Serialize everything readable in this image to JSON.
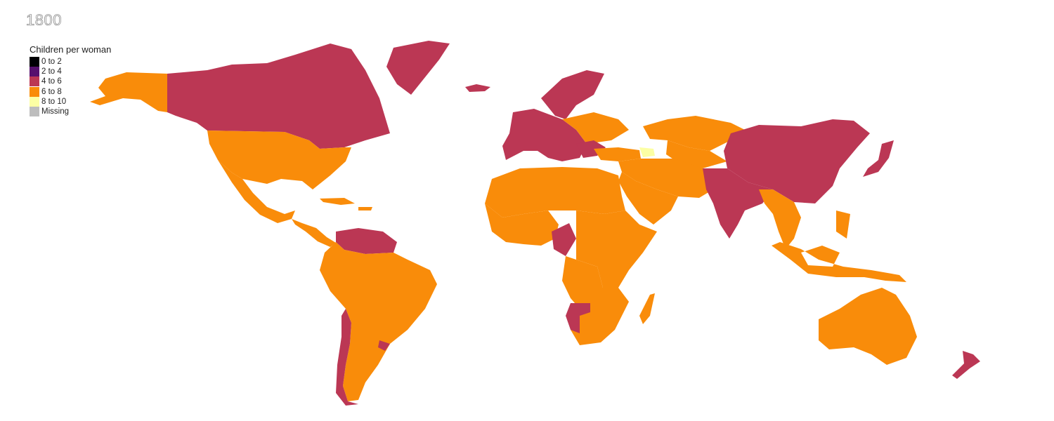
{
  "year": "1800",
  "legend": {
    "title": "Children per woman",
    "items": [
      {
        "label": "0 to 2",
        "color": "#000004"
      },
      {
        "label": "2 to 4",
        "color": "#56106e"
      },
      {
        "label": "4 to 6",
        "color": "#bb3754"
      },
      {
        "label": "6 to 8",
        "color": "#f98c0a"
      },
      {
        "label": "8 to 10",
        "color": "#fcffa4"
      },
      {
        "label": "Missing",
        "color": "#bdbdbd"
      }
    ]
  },
  "regions": [
    {
      "name": "Alaska",
      "category": "6 to 8"
    },
    {
      "name": "Canada",
      "category": "4 to 6"
    },
    {
      "name": "Greenland",
      "category": "4 to 6"
    },
    {
      "name": "Iceland",
      "category": "4 to 6"
    },
    {
      "name": "United States",
      "category": "6 to 8"
    },
    {
      "name": "Mexico",
      "category": "6 to 8"
    },
    {
      "name": "Central America",
      "category": "6 to 8"
    },
    {
      "name": "Caribbean",
      "category": "6 to 8"
    },
    {
      "name": "Venezuela and Guianas",
      "category": "4 to 6"
    },
    {
      "name": "South America",
      "category": "6 to 8"
    },
    {
      "name": "Chile",
      "category": "4 to 6"
    },
    {
      "name": "Uruguay",
      "category": "4 to 6"
    },
    {
      "name": "Western Europe",
      "category": "4 to 6"
    },
    {
      "name": "Scandinavia",
      "category": "4 to 6"
    },
    {
      "name": "Eastern Europe",
      "category": "6 to 8"
    },
    {
      "name": "Balkans",
      "category": "4 to 6"
    },
    {
      "name": "Turkey",
      "category": "6 to 8"
    },
    {
      "name": "Caucasus",
      "category": "8 to 10"
    },
    {
      "name": "Russia",
      "category": "6 to 8"
    },
    {
      "name": "Central Asia",
      "category": "6 to 8"
    },
    {
      "name": "Middle East",
      "category": "6 to 8"
    },
    {
      "name": "Arabia",
      "category": "6 to 8"
    },
    {
      "name": "North Africa",
      "category": "6 to 8"
    },
    {
      "name": "West Africa",
      "category": "6 to 8"
    },
    {
      "name": "Cameroon",
      "category": "4 to 6"
    },
    {
      "name": "East Africa",
      "category": "6 to 8"
    },
    {
      "name": "Southern Africa",
      "category": "6 to 8"
    },
    {
      "name": "Namibia",
      "category": "4 to 6"
    },
    {
      "name": "Madagascar",
      "category": "6 to 8"
    },
    {
      "name": "China",
      "category": "4 to 6"
    },
    {
      "name": "India",
      "category": "4 to 6"
    },
    {
      "name": "Southeast Asia",
      "category": "6 to 8"
    },
    {
      "name": "Japan",
      "category": "4 to 6"
    },
    {
      "name": "Indonesia",
      "category": "6 to 8"
    },
    {
      "name": "Australia",
      "category": "6 to 8"
    },
    {
      "name": "New Zealand",
      "category": "4 to 6"
    }
  ]
}
